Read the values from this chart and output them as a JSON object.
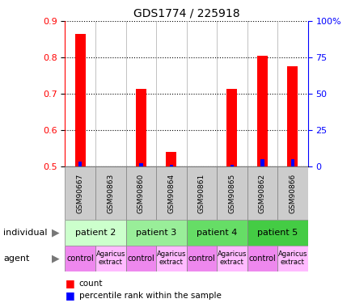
{
  "title": "GDS1774 / 225918",
  "samples": [
    "GSM90667",
    "GSM90863",
    "GSM90860",
    "GSM90864",
    "GSM90861",
    "GSM90865",
    "GSM90862",
    "GSM90866"
  ],
  "red_values": [
    0.865,
    0.5,
    0.715,
    0.54,
    0.5,
    0.715,
    0.805,
    0.775
  ],
  "blue_values": [
    0.515,
    0.5,
    0.51,
    0.505,
    0.5,
    0.505,
    0.52,
    0.52
  ],
  "ylim": [
    0.5,
    0.9
  ],
  "yticks": [
    0.5,
    0.6,
    0.7,
    0.8,
    0.9
  ],
  "right_yticks": [
    0,
    25,
    50,
    75,
    100
  ],
  "right_ylabels": [
    "0",
    "25",
    "50",
    "75",
    "100%"
  ],
  "individuals": [
    {
      "label": "patient 2",
      "span": [
        0,
        2
      ],
      "color": "#ccffcc"
    },
    {
      "label": "patient 3",
      "span": [
        2,
        4
      ],
      "color": "#99ee99"
    },
    {
      "label": "patient 4",
      "span": [
        4,
        6
      ],
      "color": "#66dd66"
    },
    {
      "label": "patient 5",
      "span": [
        6,
        8
      ],
      "color": "#44cc44"
    }
  ],
  "agents": [
    {
      "label": "control",
      "span": [
        0,
        1
      ],
      "color": "#ee88ee"
    },
    {
      "label": "Agaricus\nextract",
      "span": [
        1,
        2
      ],
      "color": "#ffbbff"
    },
    {
      "label": "control",
      "span": [
        2,
        3
      ],
      "color": "#ee88ee"
    },
    {
      "label": "Agaricus\nextract",
      "span": [
        3,
        4
      ],
      "color": "#ffbbff"
    },
    {
      "label": "control",
      "span": [
        4,
        5
      ],
      "color": "#ee88ee"
    },
    {
      "label": "Agaricus\nextract",
      "span": [
        5,
        6
      ],
      "color": "#ffbbff"
    },
    {
      "label": "control",
      "span": [
        6,
        7
      ],
      "color": "#ee88ee"
    },
    {
      "label": "Agaricus\nextract",
      "span": [
        7,
        8
      ],
      "color": "#ffbbff"
    }
  ],
  "bar_width": 0.35,
  "blue_bar_width": 0.12,
  "left_axis_color": "red",
  "right_axis_color": "blue",
  "grid_color": "black",
  "gsm_bg_color": "#cccccc",
  "legend_items": [
    {
      "color": "red",
      "label": "count"
    },
    {
      "color": "blue",
      "label": "percentile rank within the sample"
    }
  ]
}
